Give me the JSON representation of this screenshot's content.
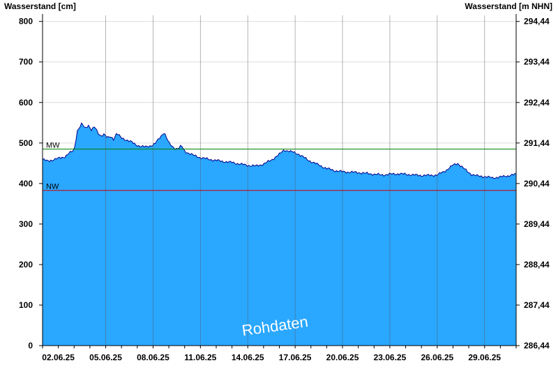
{
  "chart_data": {
    "type": "area",
    "ylabel_left": "Wasserstand [cm]",
    "ylabel_right": "Wasserstand [m NHN]",
    "ylim": [
      0,
      815
    ],
    "y_ticks_left": [
      0,
      100,
      200,
      300,
      400,
      500,
      600,
      700,
      800
    ],
    "y_ticks_right": [
      "286,44",
      "287,44",
      "288,44",
      "289,44",
      "290,44",
      "291,44",
      "292,44",
      "293,44",
      "294,44"
    ],
    "x_range_days": [
      "01.06.25 00:00",
      "01.07.25 00:00"
    ],
    "x_tick_labels": [
      "02.06.25",
      "05.06.25",
      "08.06.25",
      "11.06.25",
      "14.06.25",
      "17.06.25",
      "20.06.25",
      "23.06.25",
      "26.06.25",
      "29.06.25"
    ],
    "reference_lines": [
      {
        "label": "MW",
        "value": 485,
        "color": "#008000"
      },
      {
        "label": "NW",
        "value": 383,
        "color": "#cc0000"
      }
    ],
    "watermark": "Rohdaten",
    "fill_color": "#2aa7ff",
    "line_color": "#00008b",
    "series": [
      {
        "x_days": [
          0,
          0.3,
          0.6,
          1.0,
          1.4,
          1.7,
          2.0,
          2.2,
          2.5,
          2.7,
          2.9,
          3.1,
          3.3,
          3.5,
          3.7,
          3.9,
          4.1,
          4.3,
          4.5,
          4.7,
          5.0,
          5.3,
          5.6,
          5.9,
          6.2,
          6.5,
          6.8,
          7.1,
          7.4,
          7.7,
          8.0,
          8.2,
          8.4,
          8.6,
          8.8,
          9.0,
          9.3,
          9.6,
          10.0,
          10.5,
          11.0,
          11.5,
          12.0,
          12.5,
          13.0,
          13.5,
          14.0,
          14.5,
          15.0,
          15.3,
          15.6,
          15.9,
          16.2,
          16.5,
          16.8,
          17.2,
          17.6,
          18.0,
          18.5,
          19.0,
          19.5,
          20.0,
          20.5,
          21.0,
          21.5,
          22.0,
          22.5,
          23.0,
          23.5,
          24.0,
          24.5,
          25.0,
          25.5,
          26.0,
          26.3,
          26.6,
          26.9,
          27.2,
          27.5,
          28.0,
          28.5,
          29.0,
          29.3,
          29.6,
          29.9,
          30.0
        ],
        "y": [
          460,
          455,
          458,
          462,
          466,
          475,
          482,
          530,
          548,
          535,
          545,
          532,
          540,
          525,
          518,
          522,
          512,
          516,
          510,
          524,
          512,
          508,
          503,
          496,
          492,
          490,
          493,
          497,
          512,
          527,
          500,
          492,
          487,
          486,
          493,
          480,
          474,
          469,
          464,
          460,
          457,
          454,
          452,
          448,
          445,
          443,
          448,
          458,
          472,
          483,
          480,
          477,
          473,
          466,
          458,
          451,
          444,
          437,
          432,
          429,
          428,
          427,
          425,
          423,
          421,
          423,
          424,
          423,
          421,
          420,
          420,
          421,
          431,
          445,
          450,
          440,
          430,
          422,
          419,
          417,
          414,
          416,
          418,
          420,
          422,
          423
        ]
      }
    ]
  }
}
